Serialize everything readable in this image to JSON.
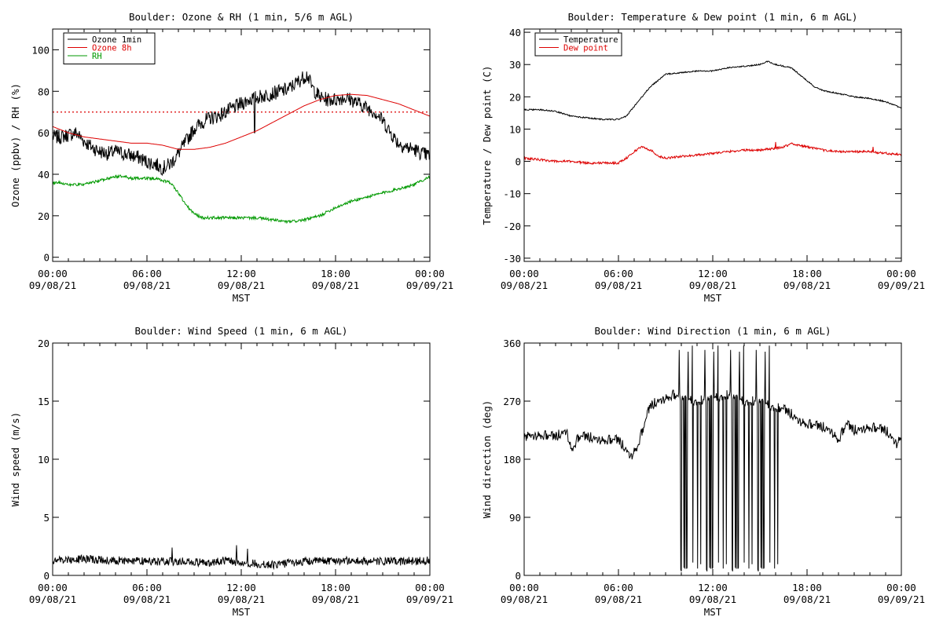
{
  "figure": {
    "background": "#ffffff",
    "axis_color": "#000000"
  },
  "chart_data": [
    {
      "type": "line",
      "title": "Boulder: Ozone & RH (1 min, 5/6 m AGL)",
      "xlabel": "MST",
      "ylabel": "Ozone (ppbv) / RH (%)",
      "x_ticks": [
        {
          "hhmm": "00:00",
          "date": "09/08/21",
          "hour": 0
        },
        {
          "hhmm": "06:00",
          "date": "09/08/21",
          "hour": 6
        },
        {
          "hhmm": "12:00",
          "date": "09/08/21",
          "hour": 12
        },
        {
          "hhmm": "18:00",
          "date": "09/08/21",
          "hour": 18
        },
        {
          "hhmm": "00:00",
          "date": "09/09/21",
          "hour": 24
        }
      ],
      "xlim": [
        0,
        24
      ],
      "ylim": [
        -2,
        110
      ],
      "yticks": [
        0,
        20,
        40,
        60,
        80,
        100
      ],
      "reference_lines": [
        {
          "y": 70,
          "color": "#dd0000",
          "style": "dotted"
        }
      ],
      "legend": {
        "position": "top-left",
        "entries": [
          {
            "name": "Ozone 1min",
            "color": "#000000"
          },
          {
            "name": "Ozone 8h",
            "color": "#dd0000"
          },
          {
            "name": "RH",
            "color": "#009900"
          }
        ]
      },
      "series": [
        {
          "name": "Ozone 1min",
          "color": "#000000",
          "noise": 3.5,
          "spikes": [
            {
              "x": 12.85,
              "y": 60
            }
          ],
          "x": [
            0,
            0.5,
            1,
            1.5,
            2,
            2.5,
            3,
            3.5,
            4,
            4.5,
            5,
            5.5,
            6,
            6.5,
            7,
            7.5,
            8,
            8.5,
            9,
            9.5,
            10,
            10.5,
            11,
            11.5,
            12,
            12.5,
            13,
            13.5,
            14,
            14.5,
            15,
            15.5,
            16,
            16.2,
            16.5,
            17,
            17.5,
            18,
            18.5,
            19,
            19.5,
            20,
            20.5,
            21,
            21.5,
            22,
            22.5,
            23,
            23.5,
            24
          ],
          "y": [
            58,
            58,
            59,
            60,
            56,
            53,
            51,
            50,
            51,
            50,
            49,
            48,
            46,
            45,
            43,
            45,
            50,
            56,
            62,
            65,
            67,
            68,
            70,
            72,
            74,
            76,
            77,
            78,
            79,
            80,
            81,
            84,
            87,
            88,
            82,
            77,
            76,
            76,
            77,
            76,
            74,
            72,
            70,
            66,
            60,
            55,
            53,
            52,
            50,
            49
          ]
        },
        {
          "name": "Ozone 8h",
          "color": "#dd0000",
          "noise": 0,
          "x": [
            0,
            1,
            2,
            3,
            4,
            5,
            6,
            7,
            8,
            9,
            10,
            11,
            12,
            13,
            14,
            15,
            16,
            17,
            18,
            19,
            20,
            21,
            22,
            23,
            24
          ],
          "y": [
            63,
            60,
            58,
            57,
            56,
            55,
            55,
            54,
            52,
            52,
            53,
            55,
            58,
            61,
            65,
            69,
            73,
            76,
            78,
            78.5,
            78,
            76,
            74,
            71,
            68
          ]
        },
        {
          "name": "RH",
          "color": "#009900",
          "noise": 0.7,
          "x": [
            0,
            0.5,
            1,
            1.5,
            2,
            2.5,
            3,
            3.5,
            4,
            4.5,
            5,
            5.5,
            6,
            6.5,
            7,
            7.5,
            8,
            8.5,
            9,
            9.5,
            10,
            11,
            12,
            13,
            14,
            15,
            16,
            17,
            17.5,
            18,
            19,
            20,
            21,
            22,
            23,
            24
          ],
          "y": [
            36,
            36,
            35,
            35,
            35,
            36,
            37,
            38,
            39,
            39,
            38,
            38,
            38,
            38,
            37,
            36,
            31,
            25,
            21,
            19,
            19,
            19,
            19,
            19,
            18,
            17,
            18,
            20,
            22,
            24,
            27,
            29,
            31,
            33,
            35,
            39
          ]
        }
      ]
    },
    {
      "type": "line",
      "title": "Boulder: Temperature & Dew point (1 min, 6 m AGL)",
      "xlabel": "MST",
      "ylabel": "Temperature / Dew point (C)",
      "x_ticks": [
        {
          "hhmm": "00:00",
          "date": "09/08/21",
          "hour": 0
        },
        {
          "hhmm": "06:00",
          "date": "09/08/21",
          "hour": 6
        },
        {
          "hhmm": "12:00",
          "date": "09/08/21",
          "hour": 12
        },
        {
          "hhmm": "18:00",
          "date": "09/08/21",
          "hour": 18
        },
        {
          "hhmm": "00:00",
          "date": "09/09/21",
          "hour": 24
        }
      ],
      "xlim": [
        0,
        24
      ],
      "ylim": [
        -31,
        41
      ],
      "yticks": [
        -30,
        -20,
        -10,
        0,
        10,
        20,
        30,
        40
      ],
      "legend": {
        "position": "top-left",
        "entries": [
          {
            "name": "Temperature",
            "color": "#000000"
          },
          {
            "name": "Dew point",
            "color": "#dd0000"
          }
        ]
      },
      "series": [
        {
          "name": "Temperature",
          "color": "#000000",
          "noise": 0.2,
          "x": [
            0,
            1,
            2,
            3,
            4,
            5,
            6,
            6.5,
            7,
            7.5,
            8,
            8.5,
            9,
            10,
            11,
            12,
            13,
            14,
            15,
            15.5,
            16,
            16.5,
            17,
            17.5,
            18,
            18.5,
            19,
            20,
            21,
            22,
            23,
            24
          ],
          "y": [
            16,
            16,
            15.5,
            14,
            13.5,
            13,
            13,
            14,
            17,
            20,
            23,
            25,
            27,
            27.5,
            28,
            28,
            29,
            29.5,
            30,
            31,
            30,
            29.5,
            29,
            27,
            25,
            23,
            22,
            21,
            20,
            19.5,
            18.5,
            16.5
          ]
        },
        {
          "name": "Dew point",
          "color": "#dd0000",
          "noise": 0.35,
          "spikes": [
            {
              "x": 16,
              "y": 6
            },
            {
              "x": 22.2,
              "y": 4.5
            }
          ],
          "x": [
            0,
            1,
            2,
            3,
            4,
            5,
            6,
            6.5,
            7,
            7.4,
            7.8,
            8.2,
            8.6,
            9,
            10,
            11,
            12,
            13,
            14,
            15,
            16,
            16.5,
            17,
            17.5,
            18,
            19,
            20,
            21,
            22,
            23,
            24
          ],
          "y": [
            1,
            0.5,
            0,
            0,
            -0.5,
            -0.5,
            -0.5,
            1,
            3,
            4.5,
            4,
            3,
            1.5,
            1,
            1.5,
            2,
            2.5,
            3,
            3.5,
            3.5,
            4,
            4.5,
            5.5,
            5,
            4.5,
            3.5,
            3,
            3,
            3,
            2.5,
            2
          ]
        }
      ]
    },
    {
      "type": "line",
      "title": "Boulder: Wind Speed (1 min, 6 m AGL)",
      "xlabel": "MST",
      "ylabel": "Wind speed (m/s)",
      "x_ticks": [
        {
          "hhmm": "00:00",
          "date": "09/08/21",
          "hour": 0
        },
        {
          "hhmm": "06:00",
          "date": "09/08/21",
          "hour": 6
        },
        {
          "hhmm": "12:00",
          "date": "09/08/21",
          "hour": 12
        },
        {
          "hhmm": "18:00",
          "date": "09/08/21",
          "hour": 18
        },
        {
          "hhmm": "00:00",
          "date": "09/09/21",
          "hour": 24
        }
      ],
      "xlim": [
        0,
        24
      ],
      "ylim": [
        0,
        20
      ],
      "yticks": [
        0,
        5,
        10,
        15,
        20
      ],
      "series": [
        {
          "name": "Wind speed",
          "color": "#000000",
          "noise": 0.35,
          "spikes": [
            {
              "x": 7.6,
              "y": 2.4
            },
            {
              "x": 11.7,
              "y": 2.6
            },
            {
              "x": 12.4,
              "y": 2.3
            }
          ],
          "x": [
            0,
            2,
            4,
            6,
            8,
            10,
            11,
            12,
            13,
            14,
            16,
            18,
            20,
            22,
            24
          ],
          "y": [
            1.3,
            1.4,
            1.3,
            1.2,
            1.2,
            1.1,
            1.3,
            1.1,
            1.0,
            0.9,
            1.2,
            1.3,
            1.2,
            1.2,
            1.3
          ]
        }
      ]
    },
    {
      "type": "line",
      "title": "Boulder: Wind Direction (1 min, 6 m AGL)",
      "xlabel": "MST",
      "ylabel": "Wind direction (deg)",
      "x_ticks": [
        {
          "hhmm": "00:00",
          "date": "09/08/21",
          "hour": 0
        },
        {
          "hhmm": "06:00",
          "date": "09/08/21",
          "hour": 6
        },
        {
          "hhmm": "12:00",
          "date": "09/08/21",
          "hour": 12
        },
        {
          "hhmm": "18:00",
          "date": "09/08/21",
          "hour": 18
        },
        {
          "hhmm": "00:00",
          "date": "09/09/21",
          "hour": 24
        }
      ],
      "xlim": [
        0,
        24
      ],
      "ylim": [
        0,
        360
      ],
      "yticks": [
        0,
        90,
        180,
        270,
        360
      ],
      "series": [
        {
          "name": "Wind direction",
          "color": "#000000",
          "noise": 8,
          "wrap": [
            9.8,
            16.2
          ],
          "x": [
            0,
            1,
            2,
            2.7,
            3,
            3.5,
            4,
            5,
            6,
            6.8,
            7.2,
            7.6,
            8,
            8.5,
            9,
            9.5,
            10,
            11,
            12,
            13,
            14,
            15,
            16,
            16.5,
            17,
            17.5,
            18,
            19,
            19.5,
            20,
            20.5,
            21,
            22,
            23,
            23.7,
            24
          ],
          "y": [
            215,
            218,
            215,
            225,
            195,
            215,
            215,
            210,
            210,
            185,
            200,
            230,
            262,
            270,
            275,
            280,
            275,
            270,
            275,
            280,
            270,
            270,
            260,
            258,
            250,
            240,
            235,
            230,
            225,
            210,
            235,
            225,
            230,
            225,
            205,
            215
          ]
        }
      ]
    }
  ]
}
